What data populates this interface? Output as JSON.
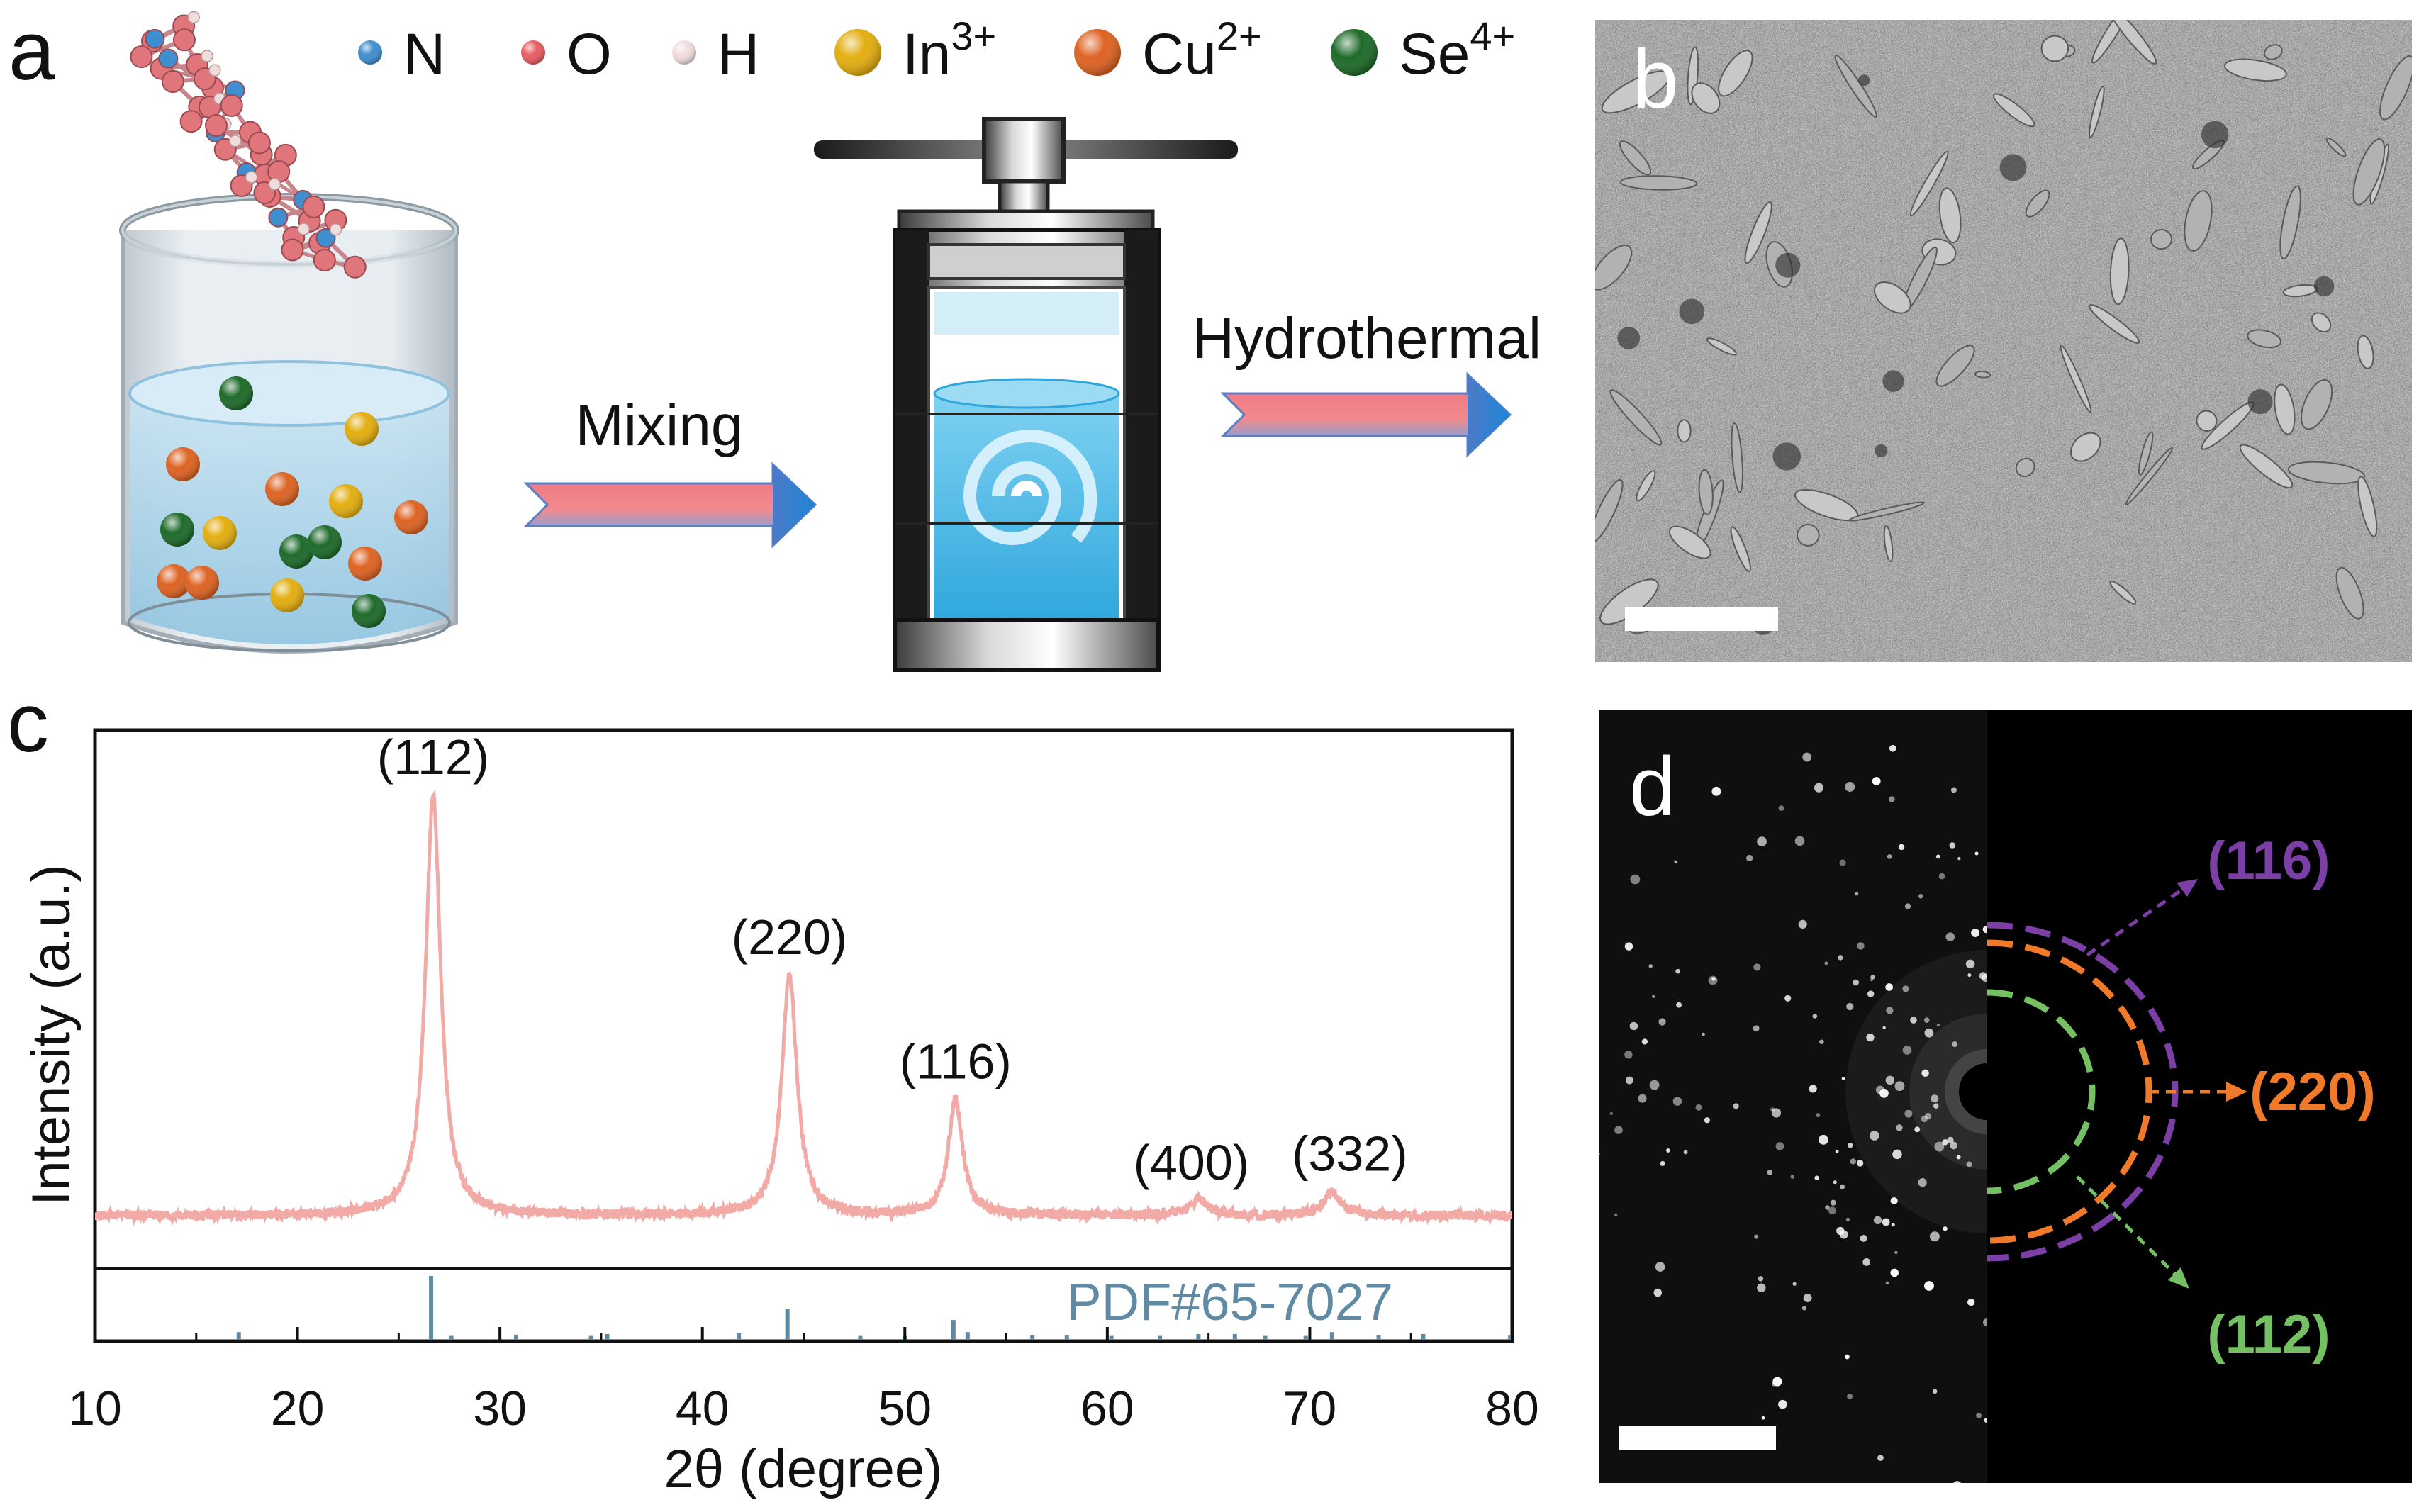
{
  "panels": {
    "a": {
      "letter": "a",
      "legend": [
        {
          "symbol": "N",
          "color": "#3f8fd0",
          "size": "small"
        },
        {
          "symbol": "O",
          "color": "#e85c62",
          "size": "small"
        },
        {
          "symbol": "H",
          "color": "#f1dcdc",
          "size": "small"
        },
        {
          "symbol": "In",
          "sup": "3+",
          "color": "#e3ae10",
          "size": "large"
        },
        {
          "symbol": "Cu",
          "sup": "2+",
          "color": "#dd6323",
          "size": "large"
        },
        {
          "symbol": "Se",
          "sup": "4+",
          "color": "#1e6b2a",
          "size": "large"
        }
      ],
      "step1_label": "Mixing",
      "step2_label": "Hydrothermal"
    },
    "b": {
      "letter": "b"
    },
    "c": {
      "letter": "c"
    },
    "d": {
      "letter": "d",
      "rings": [
        {
          "label": "(116)",
          "color": "#7b3fa6"
        },
        {
          "label": "(220)",
          "color": "#f07a2a"
        },
        {
          "label": "(112)",
          "color": "#74c062"
        }
      ]
    }
  },
  "chart_data": {
    "type": "line",
    "xlabel": "2θ (degree)",
    "ylabel": "Intensity (a.u.)",
    "xlim": [
      10,
      80
    ],
    "xticks": [
      10,
      20,
      30,
      40,
      50,
      60,
      70,
      80
    ],
    "series_color": "#f2aaa6",
    "reference_color": "#5f8aa4",
    "reference_label": "PDF#65-7027",
    "peaks": [
      {
        "label": "(112)",
        "x": 26.7,
        "height": 0.98,
        "width": 0.45
      },
      {
        "label": "(220)",
        "x": 44.3,
        "height": 0.56,
        "width": 0.45
      },
      {
        "label": "(116)",
        "x": 52.5,
        "height": 0.27,
        "width": 0.42
      },
      {
        "label": "(400)",
        "x": 64.5,
        "height": 0.035,
        "width": 0.6
      },
      {
        "label": "(332)",
        "x": 71.1,
        "height": 0.055,
        "width": 0.5
      }
    ],
    "reference_lines": [
      {
        "x": 17.1,
        "h": 0.12
      },
      {
        "x": 26.6,
        "h": 1.0
      },
      {
        "x": 27.6,
        "h": 0.06
      },
      {
        "x": 30.8,
        "h": 0.08
      },
      {
        "x": 34.5,
        "h": 0.06
      },
      {
        "x": 35.3,
        "h": 0.09
      },
      {
        "x": 41.8,
        "h": 0.1
      },
      {
        "x": 44.2,
        "h": 0.48
      },
      {
        "x": 47.8,
        "h": 0.06
      },
      {
        "x": 50.0,
        "h": 0.06
      },
      {
        "x": 52.4,
        "h": 0.31
      },
      {
        "x": 53.1,
        "h": 0.12
      },
      {
        "x": 56.3,
        "h": 0.07
      },
      {
        "x": 58.0,
        "h": 0.07
      },
      {
        "x": 60.2,
        "h": 0.06
      },
      {
        "x": 62.6,
        "h": 0.06
      },
      {
        "x": 64.5,
        "h": 0.09
      },
      {
        "x": 66.3,
        "h": 0.09
      },
      {
        "x": 67.8,
        "h": 0.06
      },
      {
        "x": 69.8,
        "h": 0.06
      },
      {
        "x": 71.1,
        "h": 0.12
      },
      {
        "x": 73.4,
        "h": 0.07
      },
      {
        "x": 75.6,
        "h": 0.09
      },
      {
        "x": 79.9,
        "h": 0.07
      }
    ]
  }
}
